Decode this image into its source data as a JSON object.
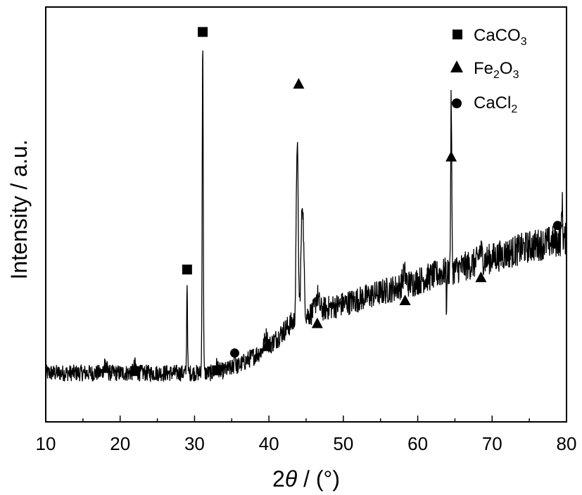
{
  "chart_data": {
    "type": "line",
    "title": "",
    "xlabel_prefix": "2",
    "xlabel_theta": "θ",
    "xlabel_suffix": " / (°)",
    "ylabel": "Intensity / a.u.",
    "xlim": [
      10,
      80
    ],
    "ylim": [
      0,
      100
    ],
    "x_ticks": [
      10,
      20,
      30,
      40,
      50,
      60,
      70,
      80
    ],
    "y_ticks_shown": false,
    "grid": false,
    "legend_position": "top-right",
    "legend": [
      {
        "marker": "square",
        "label": "CaCO",
        "sub": "3"
      },
      {
        "marker": "triangle",
        "label": "Fe",
        "sub": "2",
        "label2": "O",
        "sub2": "3"
      },
      {
        "marker": "circle",
        "label": "CaCl",
        "sub": "2"
      }
    ],
    "series": [
      {
        "name": "",
        "color": "#000000",
        "baseline_points": [
          [
            10,
            10
          ],
          [
            28,
            10
          ],
          [
            33,
            10
          ],
          [
            36,
            12
          ],
          [
            40,
            17
          ],
          [
            43,
            23
          ],
          [
            46,
            26
          ],
          [
            50,
            28
          ],
          [
            55,
            31
          ],
          [
            60,
            34
          ],
          [
            63,
            36
          ],
          [
            65,
            37
          ],
          [
            70,
            40
          ],
          [
            75,
            43
          ],
          [
            80,
            45
          ]
        ],
        "peaks": [
          {
            "x": 18.0,
            "height": 3,
            "width": 0.25
          },
          {
            "x": 22.0,
            "height": 2,
            "width": 0.25
          },
          {
            "x": 29.0,
            "height": 24,
            "width": 0.08
          },
          {
            "x": 31.1,
            "height": 86,
            "width": 0.1
          },
          {
            "x": 33.0,
            "height": 2,
            "width": 0.3
          },
          {
            "x": 35.4,
            "height": 5,
            "width": 0.1
          },
          {
            "x": 39.6,
            "height": 3,
            "width": 0.3
          },
          {
            "x": 43.8,
            "height": 47,
            "width": 0.18
          },
          {
            "x": 44.5,
            "height": 30,
            "width": 0.25
          },
          {
            "x": 46.5,
            "height": 4,
            "width": 0.3
          },
          {
            "x": 58.2,
            "height": 3,
            "width": 0.3
          },
          {
            "x": 64.5,
            "height": 45,
            "width": 0.1
          },
          {
            "x": 68.4,
            "height": 3,
            "width": 0.3
          },
          {
            "x": 79.4,
            "height": 10,
            "width": 0.1
          }
        ],
        "noise_amplitude": 2.2
      }
    ],
    "phase_markers": [
      {
        "phase": "CaCO3",
        "marker": "square",
        "x": 22.0,
        "y": 10.5
      },
      {
        "phase": "CaCO3",
        "marker": "square",
        "x": 29.0,
        "y": 37
      },
      {
        "phase": "CaCO3",
        "marker": "square",
        "x": 31.1,
        "y": 99
      },
      {
        "phase": "CaCO3",
        "marker": "square",
        "x": 33.0,
        "y": 10.7
      },
      {
        "phase": "Fe2O3",
        "marker": "triangle",
        "x": 18.1,
        "y": 11.3
      },
      {
        "phase": "Fe2O3",
        "marker": "triangle",
        "x": 39.7,
        "y": 17
      },
      {
        "phase": "Fe2O3",
        "marker": "triangle",
        "x": 44.0,
        "y": 85.5
      },
      {
        "phase": "Fe2O3",
        "marker": "triangle",
        "x": 46.5,
        "y": 23
      },
      {
        "phase": "Fe2O3",
        "marker": "triangle",
        "x": 58.3,
        "y": 29
      },
      {
        "phase": "Fe2O3",
        "marker": "triangle",
        "x": 64.5,
        "y": 66.5
      },
      {
        "phase": "Fe2O3",
        "marker": "triangle",
        "x": 68.5,
        "y": 35
      },
      {
        "phase": "CaCl2",
        "marker": "circle",
        "x": 35.4,
        "y": 15.2
      },
      {
        "phase": "CaCl2",
        "marker": "circle",
        "x": 78.8,
        "y": 48.5
      }
    ]
  }
}
